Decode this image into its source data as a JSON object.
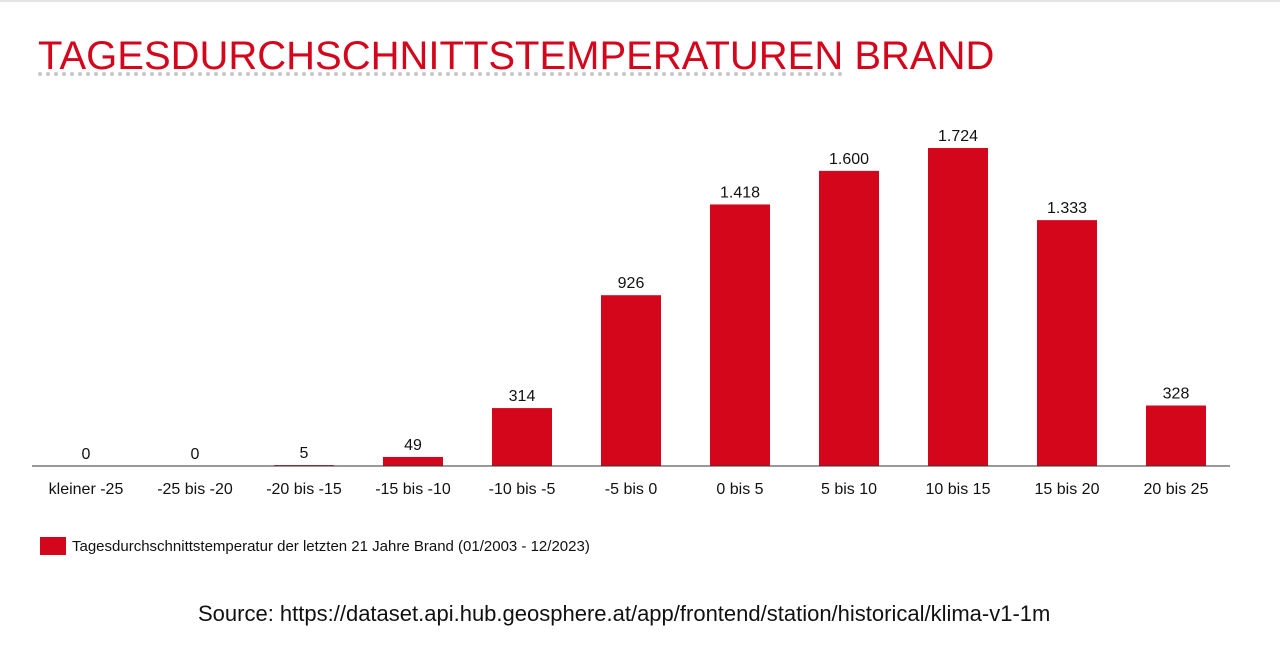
{
  "title_part1": "TAGESDURCHSCHNITTSTEMPERATUREN",
  "title_part2": " BRAND",
  "legend_label": "Tagesdurchschnittstemperatur der letzten 21 Jahre Brand (01/2003 - 12/2023)",
  "source": "Source: https://dataset.api.hub.geosphere.at/app/frontend/station/historical/klima-v1-1m",
  "colors": {
    "bar": "#d3061c",
    "title": "#d3061c"
  },
  "chart_data": {
    "type": "bar",
    "categories": [
      "kleiner -25",
      "-25 bis -20",
      "-20 bis -15",
      "-15 bis -10",
      "-10 bis -5",
      "-5 bis 0",
      "0 bis 5",
      "5 bis 10",
      "10 bis 15",
      "15 bis 20",
      "20 bis 25"
    ],
    "series": [
      {
        "name": "Tagesdurchschnittstemperatur der letzten 21 Jahre Brand (01/2003 - 12/2023)",
        "values": [
          0,
          0,
          5,
          49,
          314,
          926,
          1418,
          1600,
          1724,
          1333,
          328
        ],
        "labels": [
          "0",
          "0",
          "5",
          "49",
          "314",
          "926",
          "1.418",
          "1.600",
          "1.724",
          "1.333",
          "328"
        ]
      }
    ],
    "title": "TAGESDURCHSCHNITTSTEMPERATUREN BRAND",
    "xlabel": "",
    "ylabel": "",
    "ylim": [
      0,
      1800
    ],
    "grid": false,
    "y_axis_visible": false,
    "legend": "bottom-left"
  }
}
